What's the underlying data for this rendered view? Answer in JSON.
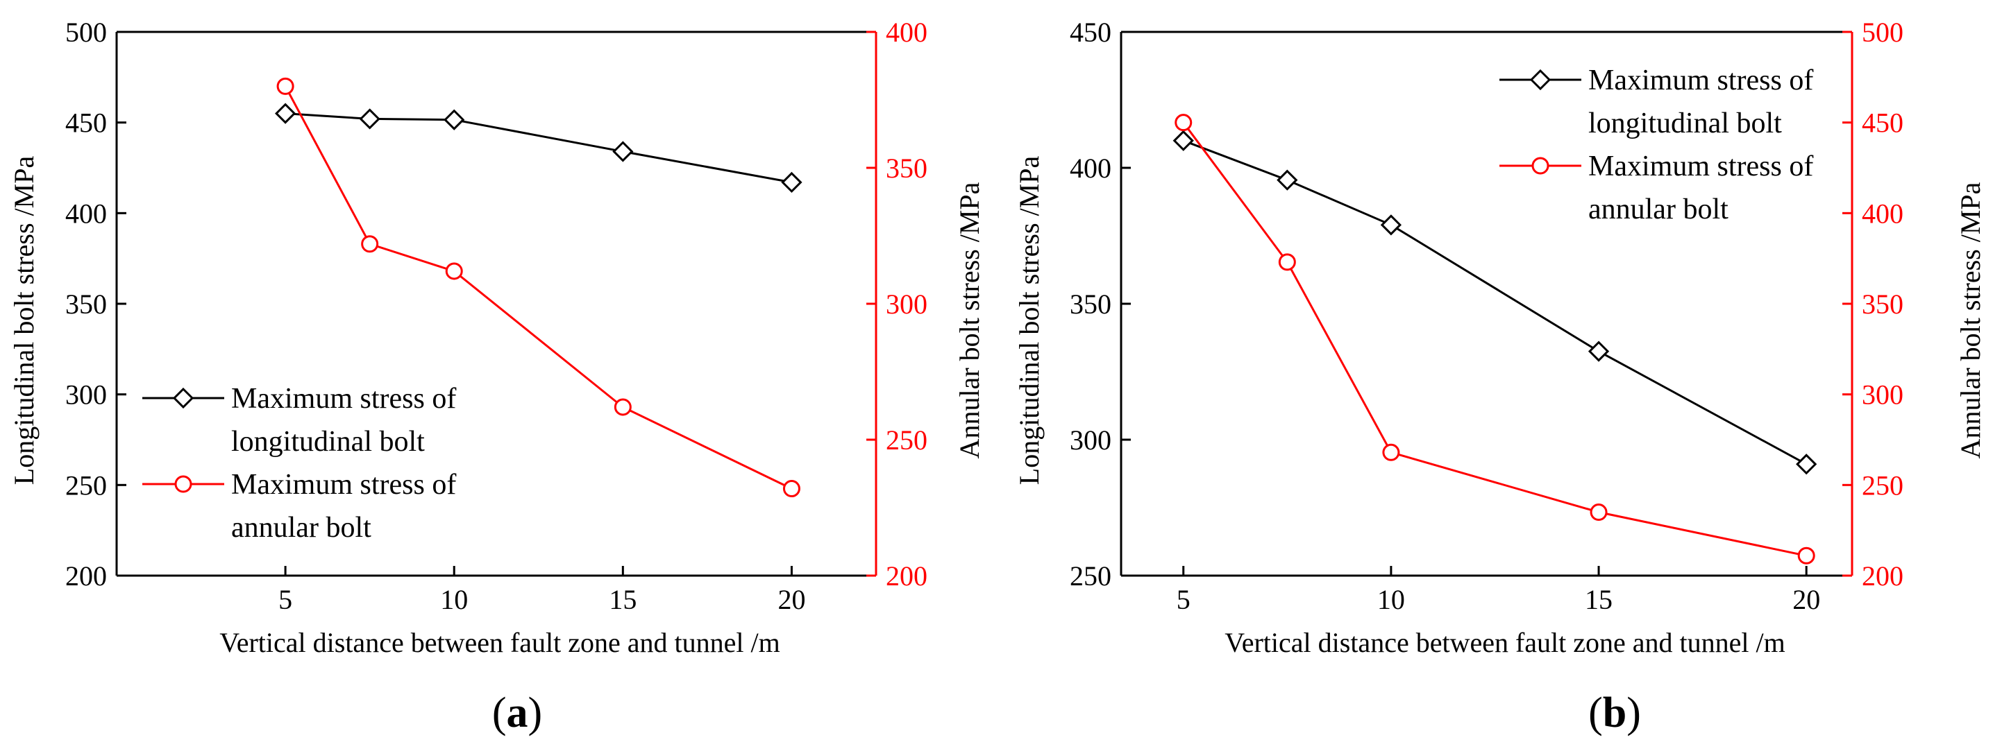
{
  "colors": {
    "left_axis": "#000000",
    "right_axis": "#ff0000",
    "longitudinal_series": "#000000",
    "annular_series": "#ff0000"
  },
  "chart_data": [
    {
      "id": "a",
      "type": "line",
      "caption": "a",
      "xlabel": "Vertical distance between fault zone and tunnel /m",
      "ylabel_left": "Longitudinal bolt stress /MPa",
      "ylabel_right": "Annular bolt stress /MPa",
      "xlim": [
        0,
        22.5
      ],
      "xticks": [
        5,
        10,
        15,
        20
      ],
      "ylim_left": [
        200,
        500
      ],
      "yticks_left": [
        200,
        250,
        300,
        350,
        400,
        450,
        500
      ],
      "ylim_right": [
        200,
        400
      ],
      "yticks_right": [
        200,
        250,
        300,
        350,
        400
      ],
      "legend_position": "center-left",
      "series": [
        {
          "name": "Maximum stress of longitudinal bolt",
          "legend_lines": [
            "Maximum stress of",
            "longitudinal bolt"
          ],
          "axis": "left",
          "marker": "diamond",
          "x": [
            5,
            7.5,
            10,
            15,
            20
          ],
          "y": [
            455,
            452,
            451.5,
            434,
            417
          ]
        },
        {
          "name": "Maximum stress of annular bolt",
          "legend_lines": [
            "Maximum stress of",
            "annular bolt"
          ],
          "axis": "right",
          "marker": "circle",
          "x": [
            5,
            7.5,
            10,
            15,
            20
          ],
          "y": [
            380,
            322,
            312,
            262,
            232
          ]
        }
      ]
    },
    {
      "id": "b",
      "type": "line",
      "caption": "b",
      "xlabel": "Vertical distance between fault zone and tunnel /m",
      "ylabel_left": "Longitudinal bolt stress /MPa",
      "ylabel_right": "Annular bolt stress /MPa",
      "xlim": [
        3.5,
        21.1
      ],
      "xticks": [
        5,
        10,
        15,
        20
      ],
      "ylim_left": [
        250,
        450
      ],
      "yticks_left": [
        250,
        300,
        350,
        400,
        450
      ],
      "ylim_right": [
        200,
        500
      ],
      "yticks_right": [
        200,
        250,
        300,
        350,
        400,
        450,
        500
      ],
      "legend_position": "top-right",
      "series": [
        {
          "name": "Maximum stress of longitudinal bolt",
          "legend_lines": [
            "Maximum stress of",
            "longitudinal bolt"
          ],
          "axis": "left",
          "marker": "diamond",
          "x": [
            5,
            7.5,
            10,
            15,
            20
          ],
          "y": [
            410,
            395.5,
            379,
            332.5,
            291
          ]
        },
        {
          "name": "Maximum stress of annular bolt",
          "legend_lines": [
            "Maximum stress of",
            "annular bolt"
          ],
          "axis": "right",
          "marker": "circle",
          "x": [
            5,
            7.5,
            10,
            15,
            20
          ],
          "y": [
            450,
            373,
            268,
            235,
            211
          ]
        }
      ]
    }
  ]
}
